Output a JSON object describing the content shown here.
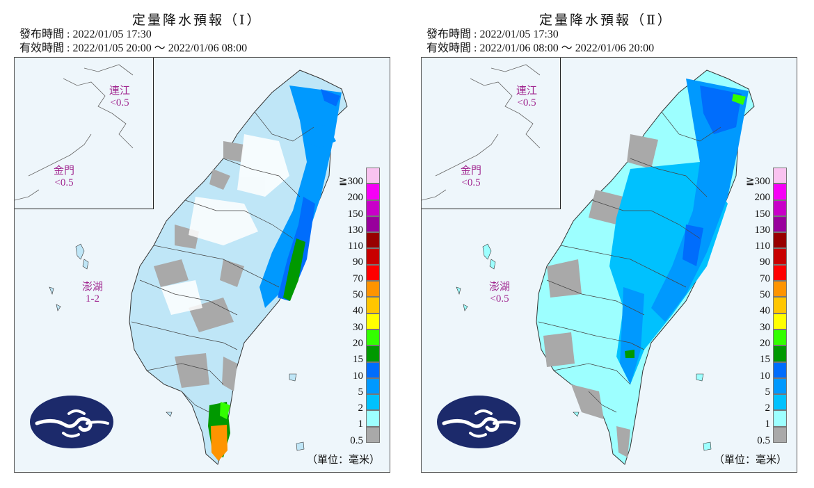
{
  "panels": [
    {
      "title": "定量降水預報（Ⅰ）",
      "issue_time": "發布時間 : 2022/01/05 17:30",
      "valid_time": "有效時間 : 2022/01/05 20:00 ～ 2022/01/06 08:00",
      "islands": {
        "lienchiang": {
          "name": "連江",
          "value": "<0.5"
        },
        "kinmen": {
          "name": "金門",
          "value": "<0.5"
        },
        "penghu": {
          "name": "澎湖",
          "value": "1-2"
        }
      }
    },
    {
      "title": "定量降水預報（Ⅱ）",
      "issue_time": "發布時間 : 2022/01/05 17:30",
      "valid_time": "有效時間 : 2022/01/06 08:00 ～ 2022/01/06 20:00",
      "islands": {
        "lienchiang": {
          "name": "連江",
          "value": "<0.5"
        },
        "kinmen": {
          "name": "金門",
          "value": "<0.5"
        },
        "penghu": {
          "name": "澎湖",
          "value": "<0.5"
        }
      }
    }
  ],
  "legend": {
    "unit": "（單位：毫米）",
    "bins": [
      {
        "label": "≧300",
        "color": "#f9c3f0"
      },
      {
        "label": "200",
        "color": "#f600f6"
      },
      {
        "label": "150",
        "color": "#c800c8"
      },
      {
        "label": "130",
        "color": "#98009c"
      },
      {
        "label": "110",
        "color": "#980000"
      },
      {
        "label": "90",
        "color": "#c80000"
      },
      {
        "label": "70",
        "color": "#fe0000"
      },
      {
        "label": "50",
        "color": "#fe9400"
      },
      {
        "label": "40",
        "color": "#ffc600"
      },
      {
        "label": "30",
        "color": "#ffff00"
      },
      {
        "label": "20",
        "color": "#33ff00"
      },
      {
        "label": "15",
        "color": "#009900"
      },
      {
        "label": "10",
        "color": "#006dfc"
      },
      {
        "label": "5",
        "color": "#0099fe"
      },
      {
        "label": "2",
        "color": "#00c1fe"
      },
      {
        "label": "1",
        "color": "#9dffff"
      },
      {
        "label": "0.5",
        "color": "#a9a9a9"
      }
    ]
  },
  "colors": {
    "ocean": "#eef6fb",
    "island_label": "#a0268f",
    "logo_bg": "#1c2a6b"
  }
}
